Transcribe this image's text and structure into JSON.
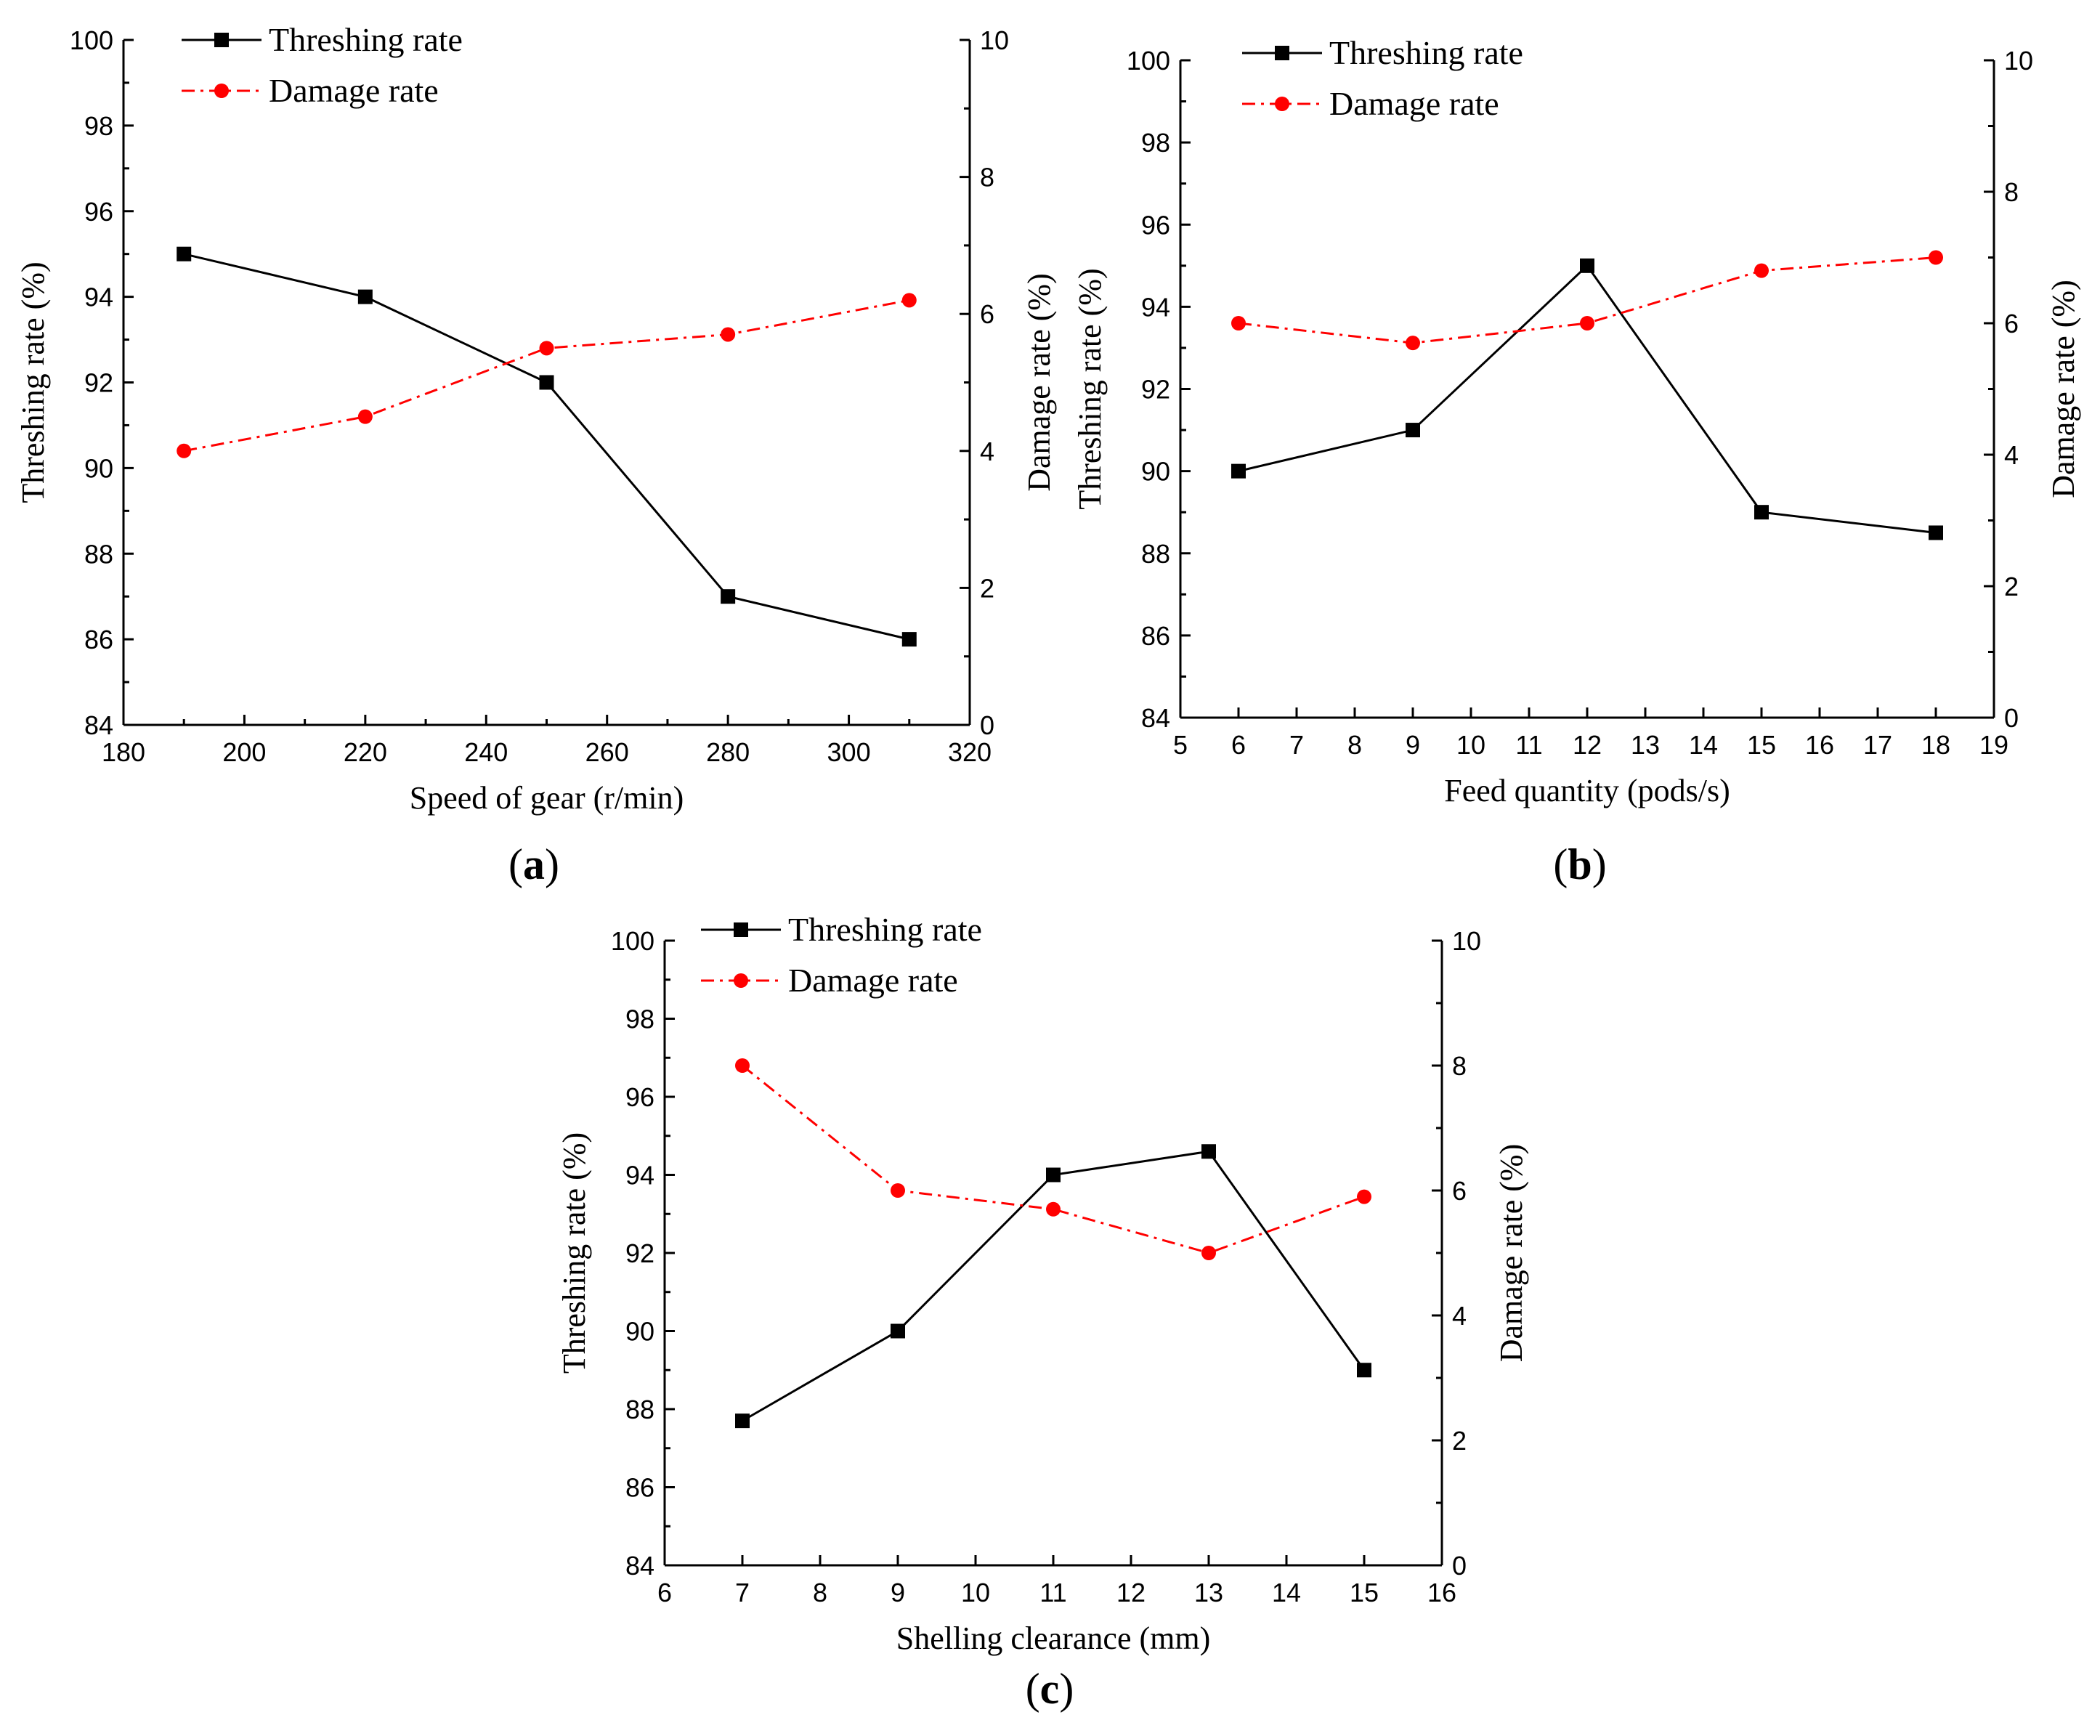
{
  "colors": {
    "threshing": "#000000",
    "damage": "#ff0000"
  },
  "chart_data": [
    {
      "id": "a",
      "type": "line",
      "panel_label": "a",
      "xlabel": "Speed of gear (r/min)",
      "ylabel": "Threshing rate (%)",
      "y2label": "Damage rate (%)",
      "xlim": [
        180,
        320
      ],
      "ylim": [
        84,
        100
      ],
      "y2lim": [
        0,
        10
      ],
      "xticks": [
        180,
        200,
        220,
        240,
        260,
        280,
        300,
        320
      ],
      "yticks": [
        84,
        86,
        88,
        90,
        92,
        94,
        96,
        98,
        100
      ],
      "y2ticks": [
        0,
        2,
        4,
        6,
        8,
        10
      ],
      "x": [
        190,
        220,
        250,
        280,
        310
      ],
      "series": [
        {
          "name": "Threshing rate",
          "axis": "left",
          "marker": "square",
          "style": "solid",
          "values": [
            95,
            94,
            92,
            87,
            86
          ]
        },
        {
          "name": "Damage rate",
          "axis": "right",
          "marker": "circle",
          "style": "dashdot",
          "values": [
            4.0,
            4.5,
            5.5,
            5.7,
            6.2
          ]
        }
      ],
      "legend": [
        "Threshing rate",
        "Damage rate"
      ]
    },
    {
      "id": "b",
      "type": "line",
      "panel_label": "b",
      "xlabel": "Feed quantity (pods/s)",
      "ylabel": "Threshing rate (%)",
      "y2label": "Damage rate (%)",
      "xlim": [
        5,
        19
      ],
      "ylim": [
        84,
        100
      ],
      "y2lim": [
        0,
        10
      ],
      "xticks": [
        5,
        6,
        7,
        8,
        9,
        10,
        11,
        12,
        13,
        14,
        15,
        16,
        17,
        18,
        19
      ],
      "yticks": [
        84,
        86,
        88,
        90,
        92,
        94,
        96,
        98,
        100
      ],
      "y2ticks": [
        0,
        2,
        4,
        6,
        8,
        10
      ],
      "x": [
        6,
        9,
        12,
        15,
        18
      ],
      "series": [
        {
          "name": "Threshing rate",
          "axis": "left",
          "marker": "square",
          "style": "solid",
          "values": [
            90,
            91,
            95,
            89,
            88.5
          ]
        },
        {
          "name": "Damage rate",
          "axis": "right",
          "marker": "circle",
          "style": "dashdot",
          "values": [
            6.0,
            5.7,
            6.0,
            6.8,
            7.0
          ]
        }
      ],
      "legend": [
        "Threshing rate",
        "Damage rate"
      ]
    },
    {
      "id": "c",
      "type": "line",
      "panel_label": "c",
      "xlabel": "Shelling clearance (mm)",
      "ylabel": "Threshing rate (%)",
      "y2label": "Damage rate (%)",
      "xlim": [
        6,
        16
      ],
      "ylim": [
        84,
        100
      ],
      "y2lim": [
        0,
        10
      ],
      "xticks": [
        6,
        7,
        8,
        9,
        10,
        11,
        12,
        13,
        14,
        15,
        16
      ],
      "yticks": [
        84,
        86,
        88,
        90,
        92,
        94,
        96,
        98,
        100
      ],
      "y2ticks": [
        0,
        2,
        4,
        6,
        8,
        10
      ],
      "x": [
        7,
        9,
        11,
        13,
        15
      ],
      "series": [
        {
          "name": "Threshing rate",
          "axis": "left",
          "marker": "square",
          "style": "solid",
          "values": [
            87.7,
            90,
            94,
            94.6,
            89
          ]
        },
        {
          "name": "Damage rate",
          "axis": "right",
          "marker": "circle",
          "style": "dashdot",
          "values": [
            8.0,
            6.0,
            5.7,
            5.0,
            5.9
          ]
        }
      ],
      "legend": [
        "Threshing rate",
        "Damage rate"
      ]
    }
  ]
}
